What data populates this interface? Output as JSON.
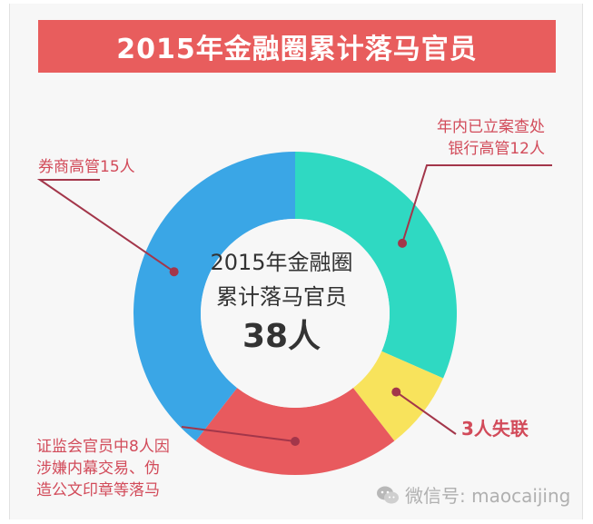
{
  "chart_data": {
    "type": "donut",
    "title": "2015年金融圈累计落马官员",
    "center": {
      "line1": "2015年金融圈",
      "line2": "累计落马官员",
      "total": "38人"
    },
    "slices": [
      {
        "value": 12,
        "label": "年内已立案查处\n银行高管12人",
        "color": "#2fd9c2"
      },
      {
        "value": 3,
        "label": "3人失联",
        "color": "#f8e35c"
      },
      {
        "value": 8,
        "label": "证监会官员中8人因\n涉嫌内幕交易、伪\n造公文印章等落马",
        "color": "#e85a5e"
      },
      {
        "value": 15,
        "label": "券商高管15人",
        "color": "#3aa6e6"
      }
    ],
    "leader_color": "#a3364a"
  },
  "watermark": {
    "text": "微信号: maocaijing",
    "icon": "wechat-icon"
  }
}
